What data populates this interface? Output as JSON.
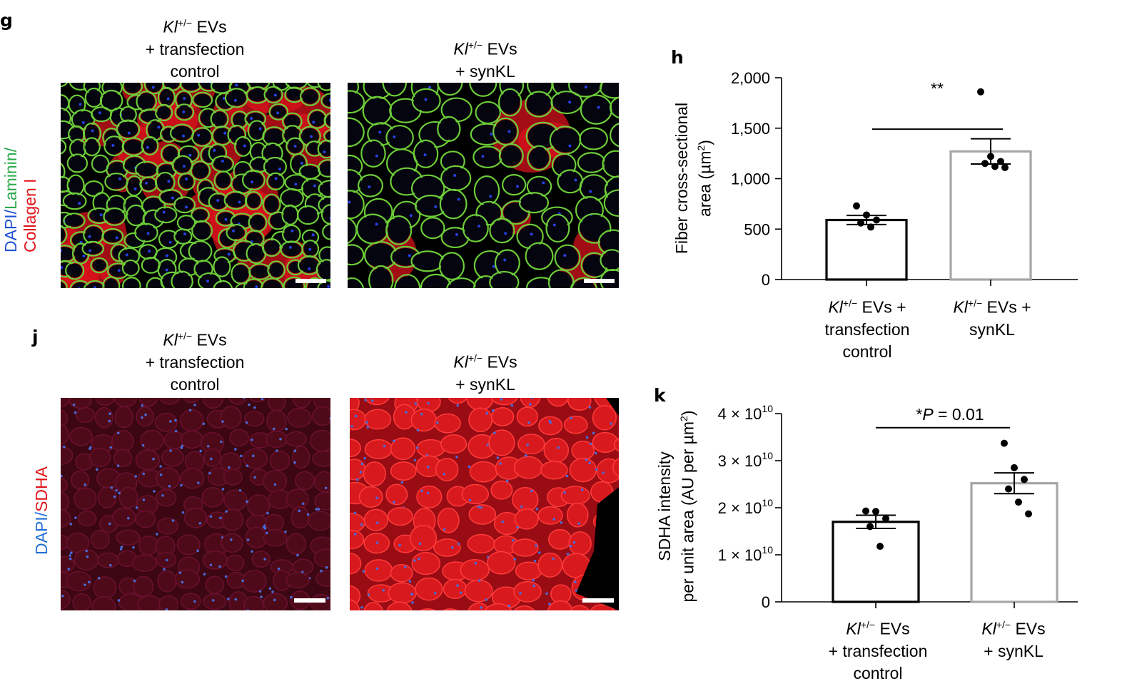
{
  "panels": {
    "g": {
      "letter": "g",
      "stain": [
        {
          "text": "DAPI",
          "color": "#1f4fd6"
        },
        {
          "text": "/",
          "color": "#1f4fd6"
        },
        {
          "text": "Laminin",
          "color": "#2aa84a"
        },
        {
          "text": "/",
          "color": "#2aa84a"
        }
      ],
      "stain_line2": {
        "text": "Collagen I",
        "color": "#e0141a"
      },
      "columns": [
        {
          "prefix": "Kl",
          "sup": "+/−",
          "rest": " EVs",
          "line2": "+ transfection",
          "line3": "control"
        },
        {
          "prefix": "Kl",
          "sup": "+/−",
          "rest": " EVs",
          "line2": "+ synKL",
          "line3": ""
        }
      ]
    },
    "j": {
      "letter": "j",
      "stain": [
        {
          "text": "DAPI",
          "color": "#1f6fd6"
        },
        {
          "text": "/",
          "color": "#1f6fd6"
        },
        {
          "text": "SDHA",
          "color": "#e0141a"
        }
      ],
      "columns": [
        {
          "prefix": "Kl",
          "sup": "+/−",
          "rest": " EVs",
          "line2": "+ transfection",
          "line3": "control"
        },
        {
          "prefix": "Kl",
          "sup": "+/−",
          "rest": " EVs",
          "line2": "+ synKL",
          "line3": ""
        }
      ]
    },
    "h": {
      "letter": "h"
    },
    "k": {
      "letter": "k"
    }
  },
  "chart_data": [
    {
      "id": "h",
      "type": "bar",
      "ylabel_line1": "Fiber cross-sectional",
      "ylabel_line2": "area (µm",
      "ylabel_sup": "2",
      "ylabel_end": ")",
      "ylim": [
        0,
        2000
      ],
      "yticks": [
        {
          "value": 0,
          "label": "0"
        },
        {
          "value": 500,
          "label": "500"
        },
        {
          "value": 1000,
          "label": "1,000"
        },
        {
          "value": 1500,
          "label": "1,500"
        },
        {
          "value": 2000,
          "label": "2,000"
        }
      ],
      "categories": [
        {
          "prefix": "Kl",
          "sup": "+/−",
          "rest": " EVs +",
          "line2": "transfection",
          "line3": "control"
        },
        {
          "prefix": "Kl",
          "sup": "+/−",
          "rest": " EVs +",
          "line2": "synKL",
          "line3": ""
        }
      ],
      "values": [
        590,
        1270
      ],
      "sem": [
        45,
        125
      ],
      "bar_colors": [
        "#000000",
        "#a6a6a6"
      ],
      "points": [
        [
          730,
          640,
          590,
          560,
          520
        ],
        [
          1860,
          1220,
          1170,
          1150,
          1120,
          1110
        ]
      ],
      "significance": {
        "text": "**",
        "bar_y": 1490
      }
    },
    {
      "id": "k",
      "type": "bar",
      "ylabel_line1": "SDHA intensity",
      "ylabel_line2": "per unit area (AU per µm",
      "ylabel_sup": "2",
      "ylabel_end": ")",
      "ylim": [
        0,
        40000000000.0
      ],
      "yticks": [
        {
          "value": 0,
          "label": "0",
          "exp": ""
        },
        {
          "value": 10000000000.0,
          "label": "1 × 10",
          "exp": "10"
        },
        {
          "value": 20000000000.0,
          "label": "2 × 10",
          "exp": "10"
        },
        {
          "value": 30000000000.0,
          "label": "3 × 10",
          "exp": "10"
        },
        {
          "value": 40000000000.0,
          "label": "4 × 10",
          "exp": "10"
        }
      ],
      "categories": [
        {
          "prefix": "Kl",
          "sup": "+/−",
          "rest": " EVs",
          "line2": "+ transfection",
          "line3": "control"
        },
        {
          "prefix": "Kl",
          "sup": "+/−",
          "rest": " EVs",
          "line2": "+ synKL",
          "line3": ""
        }
      ],
      "values": [
        17000000000.0,
        25200000000.0
      ],
      "sem": [
        1400000000.0,
        2200000000.0
      ],
      "bar_colors": [
        "#000000",
        "#a6a6a6"
      ],
      "points": [
        [
          19300000000.0,
          19200000000.0,
          17700000000.0,
          16000000000.0,
          11800000000.0
        ],
        [
          33700000000.0,
          28500000000.0,
          26000000000.0,
          24000000000.0,
          21200000000.0,
          18700000000.0
        ]
      ],
      "significance": {
        "prefix": "*",
        "p": "P",
        "text": " = 0.01",
        "bar_y": 37000000000.0
      }
    }
  ],
  "scale_bar_color": "#ffffff"
}
